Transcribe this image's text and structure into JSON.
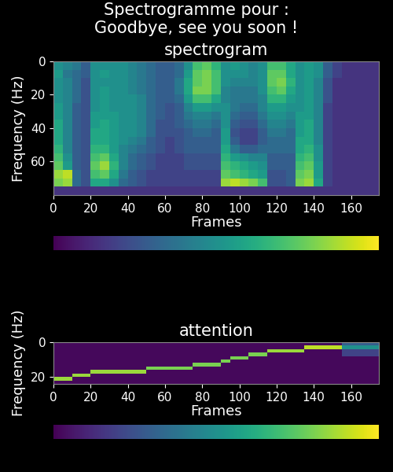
{
  "title": "Spectrogramme pour :\nGoodbye, see you soon !",
  "chart_data": [
    {
      "type": "heatmap",
      "title": "spectrogram",
      "x_label": "Frames",
      "y_label": "Frequency (Hz)",
      "xlim": [
        0,
        175
      ],
      "ylim": [
        80,
        0
      ],
      "xticks": [
        0,
        20,
        40,
        60,
        80,
        100,
        120,
        140,
        160
      ],
      "yticks": [
        0,
        20,
        40,
        60
      ],
      "colorbar_range": [
        0,
        1
      ],
      "colorbar_ticks": [],
      "cells": [
        [
          0.5,
          0.45,
          0.4,
          0.3,
          0.5,
          0.5,
          0.5,
          0.5,
          0.45,
          0.4,
          0.35,
          0.3,
          0.3,
          0.35,
          0.5,
          0.7,
          0.75,
          0.65,
          0.5,
          0.55,
          0.5,
          0.45,
          0.5,
          0.7,
          0.7,
          0.6,
          0.5,
          0.55,
          0.5,
          0.3,
          0.2,
          0.15,
          0.15,
          0.15,
          0.15
        ],
        [
          0.55,
          0.4,
          0.35,
          0.3,
          0.5,
          0.55,
          0.5,
          0.5,
          0.45,
          0.4,
          0.35,
          0.3,
          0.3,
          0.35,
          0.55,
          0.75,
          0.8,
          0.7,
          0.5,
          0.5,
          0.5,
          0.45,
          0.5,
          0.75,
          0.75,
          0.6,
          0.5,
          0.55,
          0.5,
          0.3,
          0.2,
          0.15,
          0.15,
          0.15,
          0.15
        ],
        [
          0.5,
          0.45,
          0.35,
          0.25,
          0.5,
          0.5,
          0.5,
          0.5,
          0.45,
          0.4,
          0.35,
          0.3,
          0.3,
          0.4,
          0.6,
          0.75,
          0.8,
          0.7,
          0.5,
          0.45,
          0.45,
          0.45,
          0.5,
          0.75,
          0.8,
          0.65,
          0.5,
          0.55,
          0.45,
          0.25,
          0.15,
          0.15,
          0.15,
          0.15,
          0.15
        ],
        [
          0.5,
          0.45,
          0.35,
          0.25,
          0.5,
          0.55,
          0.5,
          0.5,
          0.45,
          0.4,
          0.35,
          0.3,
          0.3,
          0.4,
          0.6,
          0.8,
          0.8,
          0.7,
          0.45,
          0.4,
          0.4,
          0.4,
          0.5,
          0.7,
          0.75,
          0.6,
          0.5,
          0.55,
          0.45,
          0.25,
          0.15,
          0.15,
          0.15,
          0.15,
          0.15
        ],
        [
          0.5,
          0.45,
          0.35,
          0.25,
          0.5,
          0.55,
          0.5,
          0.5,
          0.5,
          0.45,
          0.35,
          0.3,
          0.3,
          0.35,
          0.55,
          0.7,
          0.7,
          0.6,
          0.45,
          0.4,
          0.4,
          0.4,
          0.45,
          0.65,
          0.65,
          0.55,
          0.5,
          0.55,
          0.45,
          0.25,
          0.15,
          0.15,
          0.15,
          0.15,
          0.15
        ],
        [
          0.55,
          0.45,
          0.3,
          0.25,
          0.5,
          0.55,
          0.5,
          0.5,
          0.5,
          0.45,
          0.35,
          0.3,
          0.25,
          0.3,
          0.45,
          0.55,
          0.55,
          0.5,
          0.5,
          0.4,
          0.35,
          0.35,
          0.45,
          0.55,
          0.55,
          0.5,
          0.5,
          0.55,
          0.45,
          0.2,
          0.15,
          0.15,
          0.15,
          0.15,
          0.15
        ],
        [
          0.55,
          0.45,
          0.3,
          0.25,
          0.55,
          0.55,
          0.55,
          0.5,
          0.5,
          0.45,
          0.35,
          0.3,
          0.25,
          0.3,
          0.4,
          0.45,
          0.45,
          0.4,
          0.5,
          0.35,
          0.3,
          0.3,
          0.4,
          0.5,
          0.5,
          0.45,
          0.55,
          0.55,
          0.45,
          0.2,
          0.15,
          0.15,
          0.15,
          0.15,
          0.15
        ],
        [
          0.6,
          0.45,
          0.3,
          0.25,
          0.55,
          0.6,
          0.55,
          0.5,
          0.5,
          0.45,
          0.35,
          0.25,
          0.25,
          0.3,
          0.35,
          0.4,
          0.4,
          0.35,
          0.5,
          0.3,
          0.25,
          0.25,
          0.35,
          0.45,
          0.45,
          0.4,
          0.55,
          0.6,
          0.45,
          0.2,
          0.15,
          0.15,
          0.15,
          0.15,
          0.15
        ],
        [
          0.6,
          0.45,
          0.3,
          0.25,
          0.6,
          0.6,
          0.55,
          0.5,
          0.5,
          0.45,
          0.35,
          0.25,
          0.25,
          0.25,
          0.3,
          0.35,
          0.35,
          0.3,
          0.55,
          0.25,
          0.2,
          0.2,
          0.3,
          0.4,
          0.4,
          0.35,
          0.55,
          0.6,
          0.45,
          0.2,
          0.15,
          0.15,
          0.15,
          0.15,
          0.15
        ],
        [
          0.6,
          0.45,
          0.3,
          0.25,
          0.6,
          0.6,
          0.55,
          0.5,
          0.45,
          0.4,
          0.3,
          0.25,
          0.2,
          0.25,
          0.3,
          0.3,
          0.3,
          0.3,
          0.55,
          0.3,
          0.2,
          0.2,
          0.3,
          0.35,
          0.35,
          0.35,
          0.6,
          0.6,
          0.45,
          0.2,
          0.15,
          0.15,
          0.15,
          0.15,
          0.15
        ],
        [
          0.65,
          0.45,
          0.3,
          0.25,
          0.65,
          0.65,
          0.55,
          0.45,
          0.4,
          0.35,
          0.3,
          0.25,
          0.2,
          0.25,
          0.3,
          0.3,
          0.3,
          0.3,
          0.6,
          0.4,
          0.3,
          0.3,
          0.35,
          0.35,
          0.35,
          0.35,
          0.6,
          0.65,
          0.5,
          0.2,
          0.15,
          0.15,
          0.15,
          0.15,
          0.15
        ],
        [
          0.7,
          0.5,
          0.3,
          0.25,
          0.7,
          0.75,
          0.6,
          0.45,
          0.35,
          0.3,
          0.25,
          0.2,
          0.2,
          0.2,
          0.25,
          0.25,
          0.25,
          0.25,
          0.65,
          0.55,
          0.5,
          0.45,
          0.45,
          0.3,
          0.3,
          0.3,
          0.65,
          0.7,
          0.5,
          0.2,
          0.15,
          0.15,
          0.15,
          0.15,
          0.15
        ],
        [
          0.75,
          0.55,
          0.3,
          0.25,
          0.75,
          0.85,
          0.65,
          0.45,
          0.35,
          0.3,
          0.25,
          0.2,
          0.2,
          0.2,
          0.25,
          0.25,
          0.25,
          0.25,
          0.7,
          0.65,
          0.6,
          0.55,
          0.5,
          0.3,
          0.3,
          0.3,
          0.7,
          0.75,
          0.55,
          0.2,
          0.15,
          0.15,
          0.15,
          0.15,
          0.15
        ],
        [
          0.85,
          0.9,
          0.35,
          0.25,
          0.7,
          0.75,
          0.6,
          0.4,
          0.3,
          0.25,
          0.2,
          0.2,
          0.2,
          0.2,
          0.2,
          0.2,
          0.2,
          0.2,
          0.75,
          0.7,
          0.65,
          0.6,
          0.55,
          0.25,
          0.25,
          0.3,
          0.75,
          0.8,
          0.55,
          0.2,
          0.15,
          0.15,
          0.15,
          0.15,
          0.15
        ],
        [
          0.8,
          0.85,
          0.35,
          0.25,
          0.6,
          0.6,
          0.5,
          0.35,
          0.3,
          0.25,
          0.2,
          0.2,
          0.2,
          0.2,
          0.2,
          0.2,
          0.2,
          0.2,
          0.85,
          0.9,
          0.85,
          0.8,
          0.7,
          0.25,
          0.25,
          0.3,
          0.8,
          0.85,
          0.6,
          0.2,
          0.15,
          0.15,
          0.15,
          0.15,
          0.15
        ],
        [
          0.15,
          0.15,
          0.15,
          0.15,
          0.15,
          0.15,
          0.15,
          0.15,
          0.15,
          0.15,
          0.15,
          0.15,
          0.15,
          0.15,
          0.15,
          0.15,
          0.15,
          0.15,
          0.15,
          0.15,
          0.15,
          0.15,
          0.15,
          0.15,
          0.15,
          0.15,
          0.15,
          0.15,
          0.15,
          0.15,
          0.15,
          0.15,
          0.15,
          0.15,
          0.15
        ]
      ]
    },
    {
      "type": "heatmap",
      "title": "attention",
      "x_label": "Frames",
      "y_label": "Frequency (Hz)",
      "xlim": [
        0,
        175
      ],
      "ylim": [
        24,
        0
      ],
      "xticks": [
        0,
        20,
        40,
        60,
        80,
        100,
        120,
        140,
        160
      ],
      "yticks": [
        0,
        20
      ],
      "colorbar_range": [
        0,
        1
      ],
      "colorbar_ticks": [],
      "cells": [
        [
          0.02,
          0.02,
          0.02,
          0.02,
          0.02,
          0.02,
          0.02,
          0.02,
          0.02,
          0.02,
          0.02,
          0.02,
          0.02,
          0.02,
          0.02,
          0.02,
          0.02,
          0.02,
          0.02,
          0.02,
          0.02,
          0.02,
          0.02,
          0.02,
          0.02,
          0.02,
          0.02,
          0.02,
          0.02,
          0.02,
          0.02,
          0.3,
          0.3,
          0.3,
          0.3
        ],
        [
          0.02,
          0.02,
          0.02,
          0.02,
          0.02,
          0.02,
          0.02,
          0.02,
          0.02,
          0.02,
          0.02,
          0.02,
          0.02,
          0.02,
          0.02,
          0.02,
          0.02,
          0.02,
          0.02,
          0.02,
          0.02,
          0.02,
          0.02,
          0.02,
          0.02,
          0.02,
          0.02,
          0.9,
          0.9,
          0.9,
          0.9,
          0.5,
          0.5,
          0.5,
          0.5
        ],
        [
          0.02,
          0.02,
          0.02,
          0.02,
          0.02,
          0.02,
          0.02,
          0.02,
          0.02,
          0.02,
          0.02,
          0.02,
          0.02,
          0.02,
          0.02,
          0.02,
          0.02,
          0.02,
          0.02,
          0.02,
          0.02,
          0.02,
          0.02,
          0.85,
          0.85,
          0.85,
          0.85,
          0.02,
          0.02,
          0.02,
          0.02,
          0.2,
          0.2,
          0.2,
          0.2
        ],
        [
          0.02,
          0.02,
          0.02,
          0.02,
          0.02,
          0.02,
          0.02,
          0.02,
          0.02,
          0.02,
          0.02,
          0.02,
          0.02,
          0.02,
          0.02,
          0.02,
          0.02,
          0.02,
          0.02,
          0.02,
          0.02,
          0.8,
          0.8,
          0.02,
          0.02,
          0.02,
          0.02,
          0.02,
          0.02,
          0.02,
          0.02,
          0.2,
          0.2,
          0.2,
          0.2
        ],
        [
          0.02,
          0.02,
          0.02,
          0.02,
          0.02,
          0.02,
          0.02,
          0.02,
          0.02,
          0.02,
          0.02,
          0.02,
          0.02,
          0.02,
          0.02,
          0.02,
          0.02,
          0.02,
          0.02,
          0.8,
          0.8,
          0.02,
          0.02,
          0.02,
          0.02,
          0.02,
          0.02,
          0.02,
          0.02,
          0.02,
          0.02,
          0.02,
          0.02,
          0.02,
          0.02
        ],
        [
          0.02,
          0.02,
          0.02,
          0.02,
          0.02,
          0.02,
          0.02,
          0.02,
          0.02,
          0.02,
          0.02,
          0.02,
          0.02,
          0.02,
          0.02,
          0.02,
          0.02,
          0.02,
          0.8,
          0.02,
          0.02,
          0.02,
          0.02,
          0.02,
          0.02,
          0.02,
          0.02,
          0.02,
          0.02,
          0.02,
          0.02,
          0.02,
          0.02,
          0.02,
          0.02
        ],
        [
          0.02,
          0.02,
          0.02,
          0.02,
          0.02,
          0.02,
          0.02,
          0.02,
          0.02,
          0.02,
          0.02,
          0.02,
          0.02,
          0.02,
          0.02,
          0.8,
          0.8,
          0.8,
          0.02,
          0.02,
          0.02,
          0.02,
          0.02,
          0.02,
          0.02,
          0.02,
          0.02,
          0.02,
          0.02,
          0.02,
          0.02,
          0.02,
          0.02,
          0.02,
          0.02
        ],
        [
          0.02,
          0.02,
          0.02,
          0.02,
          0.02,
          0.02,
          0.02,
          0.02,
          0.02,
          0.02,
          0.8,
          0.8,
          0.8,
          0.8,
          0.8,
          0.02,
          0.02,
          0.02,
          0.02,
          0.02,
          0.02,
          0.02,
          0.02,
          0.02,
          0.02,
          0.02,
          0.02,
          0.02,
          0.02,
          0.02,
          0.02,
          0.02,
          0.02,
          0.02,
          0.02
        ],
        [
          0.02,
          0.02,
          0.02,
          0.02,
          0.85,
          0.85,
          0.85,
          0.85,
          0.85,
          0.85,
          0.02,
          0.02,
          0.02,
          0.02,
          0.02,
          0.02,
          0.02,
          0.02,
          0.02,
          0.02,
          0.02,
          0.02,
          0.02,
          0.02,
          0.02,
          0.02,
          0.02,
          0.02,
          0.02,
          0.02,
          0.02,
          0.02,
          0.02,
          0.02,
          0.02
        ],
        [
          0.02,
          0.02,
          0.85,
          0.85,
          0.02,
          0.02,
          0.02,
          0.02,
          0.02,
          0.02,
          0.02,
          0.02,
          0.02,
          0.02,
          0.02,
          0.02,
          0.02,
          0.02,
          0.02,
          0.02,
          0.02,
          0.02,
          0.02,
          0.02,
          0.02,
          0.02,
          0.02,
          0.02,
          0.02,
          0.02,
          0.02,
          0.02,
          0.02,
          0.02,
          0.02
        ],
        [
          0.85,
          0.85,
          0.02,
          0.02,
          0.02,
          0.02,
          0.02,
          0.02,
          0.02,
          0.02,
          0.02,
          0.02,
          0.02,
          0.02,
          0.02,
          0.02,
          0.02,
          0.02,
          0.02,
          0.02,
          0.02,
          0.02,
          0.02,
          0.02,
          0.02,
          0.02,
          0.02,
          0.02,
          0.02,
          0.02,
          0.02,
          0.02,
          0.02,
          0.02,
          0.02
        ],
        [
          0.02,
          0.02,
          0.02,
          0.02,
          0.02,
          0.02,
          0.02,
          0.02,
          0.02,
          0.02,
          0.02,
          0.02,
          0.02,
          0.02,
          0.02,
          0.02,
          0.02,
          0.02,
          0.02,
          0.02,
          0.02,
          0.02,
          0.02,
          0.02,
          0.02,
          0.02,
          0.02,
          0.02,
          0.02,
          0.02,
          0.02,
          0.02,
          0.02,
          0.02,
          0.02
        ]
      ]
    }
  ]
}
